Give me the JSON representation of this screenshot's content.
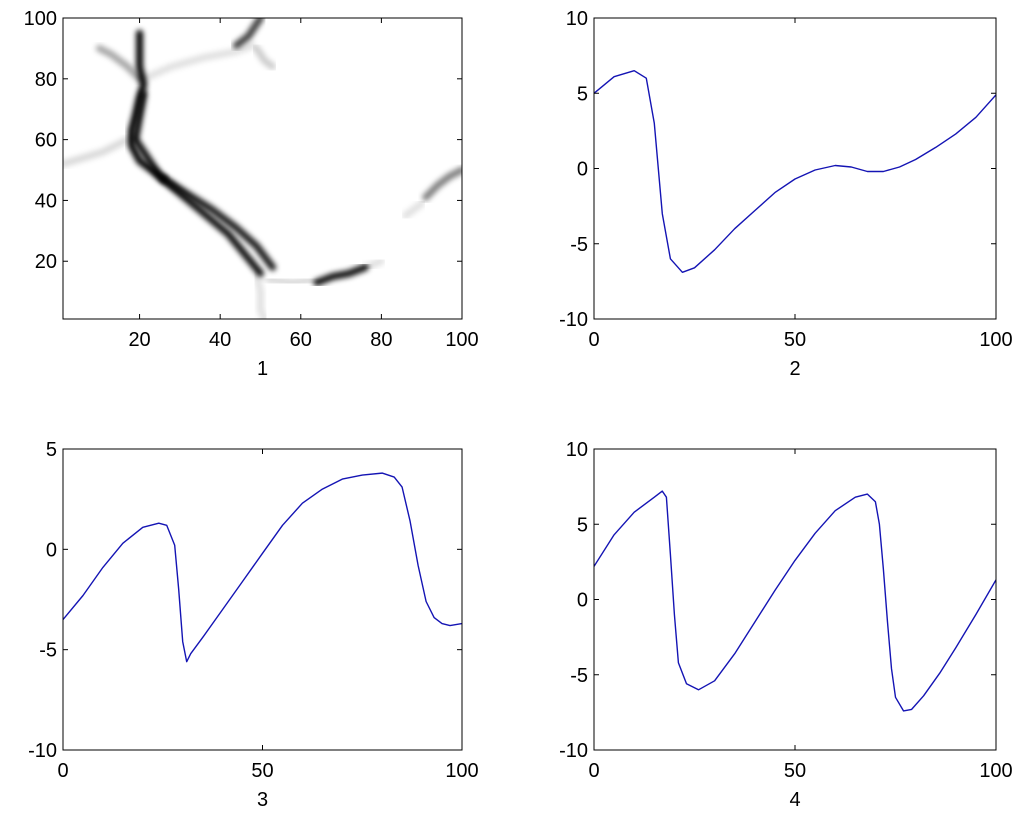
{
  "colors": {
    "line": "#1414b4",
    "axes": "#000000",
    "heat": "#000000",
    "background": "#ffffff"
  },
  "chart_data": [
    {
      "type": "heatmap",
      "xlabel": "1",
      "ylabel": "",
      "xlim": [
        1,
        100
      ],
      "ylim": [
        1,
        100
      ],
      "xticks": [
        20,
        40,
        60,
        80,
        100
      ],
      "yticks": [
        20,
        40,
        60,
        80,
        100
      ],
      "grid": false,
      "ridges": [
        {
          "intensity": 0.95,
          "points": [
            [
              21,
              75
            ],
            [
              19,
              60
            ],
            [
              25,
              48
            ],
            [
              33,
              39
            ],
            [
              42,
              29
            ],
            [
              50,
              16
            ]
          ]
        },
        {
          "intensity": 1.0,
          "points": [
            [
              20,
              95
            ],
            [
              20,
              90
            ],
            [
              20,
              84
            ],
            [
              21,
              78
            ],
            [
              20,
              74
            ],
            [
              19,
              68
            ],
            [
              18,
              63
            ],
            [
              18,
              58
            ],
            [
              20,
              53
            ],
            [
              26,
              47
            ]
          ]
        },
        {
          "intensity": 0.9,
          "points": [
            [
              26,
              47
            ],
            [
              32,
              42
            ],
            [
              38,
              37
            ],
            [
              44,
              31
            ],
            [
              49,
              25
            ],
            [
              53,
              18
            ]
          ]
        },
        {
          "intensity": 0.35,
          "points": [
            [
              10,
              90
            ],
            [
              13,
              88
            ],
            [
              17,
              84
            ],
            [
              20,
              80
            ]
          ]
        },
        {
          "intensity": 0.15,
          "points": [
            [
              1,
              52
            ],
            [
              6,
              54
            ],
            [
              11,
              56
            ],
            [
              17,
              60
            ]
          ]
        },
        {
          "intensity": 0.12,
          "points": [
            [
              21,
              80
            ],
            [
              28,
              84
            ],
            [
              36,
              87
            ],
            [
              44,
              89
            ],
            [
              48,
              91
            ]
          ]
        },
        {
          "intensity": 0.75,
          "points": [
            [
              44,
              91
            ],
            [
              47,
              94
            ],
            [
              50,
              100
            ]
          ]
        },
        {
          "intensity": 0.2,
          "points": [
            [
              49,
              90
            ],
            [
              51,
              86
            ],
            [
              53,
              84
            ]
          ]
        },
        {
          "intensity": 0.12,
          "points": [
            [
              49,
              16
            ],
            [
              50,
              10
            ],
            [
              50,
              4
            ],
            [
              51,
              1
            ]
          ]
        },
        {
          "intensity": 0.15,
          "points": [
            [
              52,
              14
            ],
            [
              58,
              13
            ],
            [
              64,
              14
            ]
          ]
        },
        {
          "intensity": 0.95,
          "points": [
            [
              64,
              13
            ],
            [
              68,
              15
            ],
            [
              72,
              16
            ],
            [
              76,
              18
            ]
          ]
        },
        {
          "intensity": 0.12,
          "points": [
            [
              76,
              18
            ],
            [
              80,
              20
            ]
          ]
        },
        {
          "intensity": 0.5,
          "points": [
            [
              91,
              41
            ],
            [
              94,
              45
            ],
            [
              97,
              48
            ],
            [
              100,
              50
            ]
          ]
        },
        {
          "intensity": 0.12,
          "points": [
            [
              86,
              35
            ],
            [
              90,
              39
            ]
          ]
        }
      ]
    },
    {
      "type": "line",
      "xlabel": "2",
      "ylabel": "",
      "xlim": [
        0,
        100
      ],
      "ylim": [
        -10,
        10
      ],
      "xticks": [
        0,
        50,
        100
      ],
      "yticks": [
        -10,
        -5,
        0,
        5,
        10
      ],
      "grid": false,
      "series": [
        {
          "values": [
            [
              0,
              5.0
            ],
            [
              5,
              6.1
            ],
            [
              10,
              6.5
            ],
            [
              13,
              6.0
            ],
            [
              15,
              3.0
            ],
            [
              17,
              -3.0
            ],
            [
              19,
              -6.0
            ],
            [
              22,
              -6.9
            ],
            [
              25,
              -6.6
            ],
            [
              30,
              -5.4
            ],
            [
              35,
              -4.0
            ],
            [
              40,
              -2.8
            ],
            [
              45,
              -1.6
            ],
            [
              50,
              -0.7
            ],
            [
              55,
              -0.1
            ],
            [
              60,
              0.2
            ],
            [
              64,
              0.1
            ],
            [
              68,
              -0.2
            ],
            [
              72,
              -0.2
            ],
            [
              76,
              0.1
            ],
            [
              80,
              0.6
            ],
            [
              85,
              1.4
            ],
            [
              90,
              2.3
            ],
            [
              95,
              3.4
            ],
            [
              100,
              4.9
            ]
          ]
        }
      ]
    },
    {
      "type": "line",
      "xlabel": "3",
      "ylabel": "",
      "xlim": [
        0,
        100
      ],
      "ylim": [
        -10,
        5
      ],
      "xticks": [
        0,
        50,
        100
      ],
      "yticks": [
        -10,
        -5,
        0,
        5
      ],
      "grid": false,
      "series": [
        {
          "values": [
            [
              0,
              -3.5
            ],
            [
              5,
              -2.3
            ],
            [
              10,
              -0.9
            ],
            [
              15,
              0.3
            ],
            [
              20,
              1.1
            ],
            [
              24,
              1.3
            ],
            [
              26,
              1.2
            ],
            [
              28,
              0.2
            ],
            [
              29,
              -2.0
            ],
            [
              30,
              -4.6
            ],
            [
              31,
              -5.6
            ],
            [
              32,
              -5.2
            ],
            [
              35,
              -4.4
            ],
            [
              40,
              -3.0
            ],
            [
              45,
              -1.6
            ],
            [
              50,
              -0.2
            ],
            [
              55,
              1.2
            ],
            [
              60,
              2.3
            ],
            [
              65,
              3.0
            ],
            [
              70,
              3.5
            ],
            [
              75,
              3.7
            ],
            [
              80,
              3.8
            ],
            [
              83,
              3.6
            ],
            [
              85,
              3.1
            ],
            [
              87,
              1.4
            ],
            [
              89,
              -0.8
            ],
            [
              91,
              -2.6
            ],
            [
              93,
              -3.4
            ],
            [
              95,
              -3.7
            ],
            [
              97,
              -3.8
            ],
            [
              100,
              -3.7
            ]
          ]
        }
      ]
    },
    {
      "type": "line",
      "xlabel": "4",
      "ylabel": "",
      "xlim": [
        0,
        100
      ],
      "ylim": [
        -10,
        10
      ],
      "xticks": [
        0,
        50,
        100
      ],
      "yticks": [
        -10,
        -5,
        0,
        5,
        10
      ],
      "grid": false,
      "series": [
        {
          "values": [
            [
              0,
              2.2
            ],
            [
              5,
              4.3
            ],
            [
              10,
              5.8
            ],
            [
              15,
              6.8
            ],
            [
              17,
              7.2
            ],
            [
              18,
              6.8
            ],
            [
              19,
              3.0
            ],
            [
              20,
              -1.0
            ],
            [
              21,
              -4.2
            ],
            [
              23,
              -5.6
            ],
            [
              26,
              -6.0
            ],
            [
              30,
              -5.4
            ],
            [
              35,
              -3.6
            ],
            [
              40,
              -1.5
            ],
            [
              45,
              0.6
            ],
            [
              50,
              2.6
            ],
            [
              55,
              4.4
            ],
            [
              60,
              5.9
            ],
            [
              65,
              6.8
            ],
            [
              68,
              7.0
            ],
            [
              70,
              6.5
            ],
            [
              71,
              5.0
            ],
            [
              72,
              2.0
            ],
            [
              73,
              -1.5
            ],
            [
              74,
              -4.6
            ],
            [
              75,
              -6.5
            ],
            [
              77,
              -7.4
            ],
            [
              79,
              -7.3
            ],
            [
              82,
              -6.4
            ],
            [
              86,
              -4.9
            ],
            [
              90,
              -3.2
            ],
            [
              95,
              -1.0
            ],
            [
              100,
              1.3
            ]
          ]
        }
      ]
    }
  ]
}
